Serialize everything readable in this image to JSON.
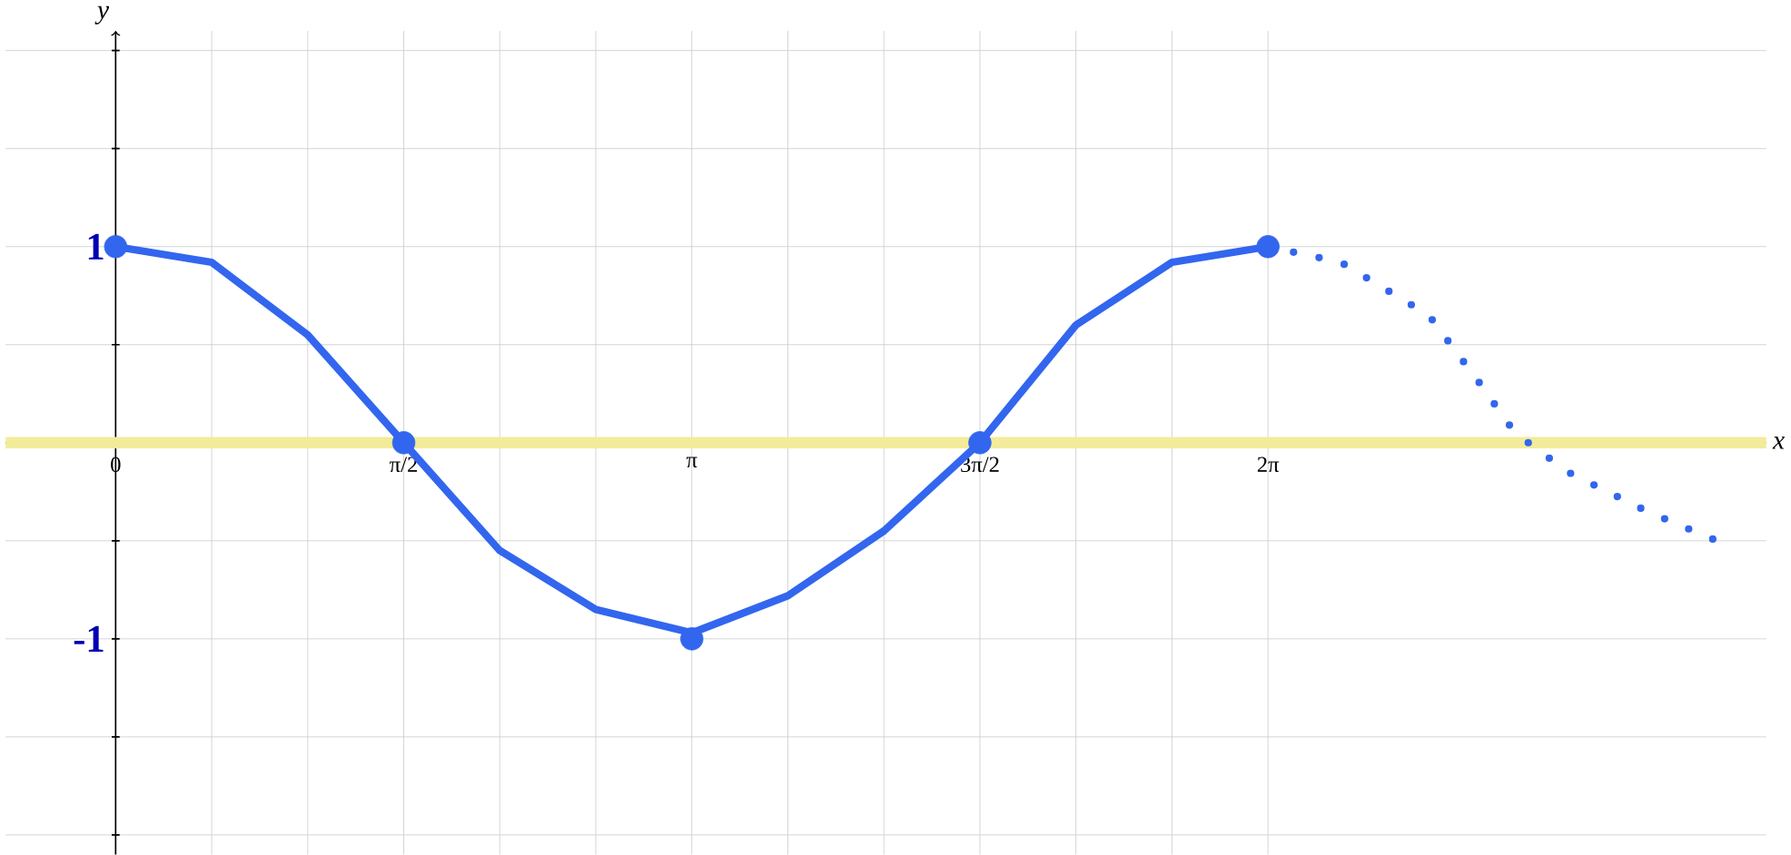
{
  "chart_data": {
    "type": "line",
    "xlabel": "x",
    "ylabel": "y",
    "xlim": [
      -0.6,
      9.0
    ],
    "ylim": [
      -2.1,
      2.1
    ],
    "xticks": [
      {
        "value": 0,
        "label": "0"
      },
      {
        "value": 0.5236,
        "label": null
      },
      {
        "value": 1.0472,
        "label": null
      },
      {
        "value": 1.5708,
        "label": "π/2"
      },
      {
        "value": 2.0944,
        "label": null
      },
      {
        "value": 2.618,
        "label": null
      },
      {
        "value": 3.1416,
        "label": "π"
      },
      {
        "value": 3.6652,
        "label": null
      },
      {
        "value": 4.1888,
        "label": null
      },
      {
        "value": 4.7124,
        "label": "3π/2"
      },
      {
        "value": 5.236,
        "label": null
      },
      {
        "value": 5.7596,
        "label": null
      },
      {
        "value": 6.2832,
        "label": "2π"
      }
    ],
    "yticks": [
      {
        "value": -2,
        "label": null
      },
      {
        "value": -1.5,
        "label": null
      },
      {
        "value": -1,
        "label": "-1"
      },
      {
        "value": -0.5,
        "label": null
      },
      {
        "value": 0.5,
        "label": null
      },
      {
        "value": 1,
        "label": "1"
      },
      {
        "value": 1.5,
        "label": null
      },
      {
        "value": 2,
        "label": null
      }
    ],
    "grid": true,
    "ref_lines": [
      {
        "axis": "y",
        "value": 0,
        "color": "#f2ec9a"
      }
    ],
    "series": [
      {
        "color": "#3366ee",
        "line_style": "solid",
        "marker": "none",
        "x": [
          0,
          0.5236,
          1.0472,
          1.5708,
          2.0944,
          2.618,
          3.1416,
          3.6652,
          4.1888,
          4.7124,
          5.236,
          5.7596,
          6.2832
        ],
        "values": [
          1,
          0.92,
          0.55,
          0,
          -0.55,
          -0.85,
          -0.97,
          -0.78,
          -0.45,
          0,
          0.6,
          0.92,
          1
        ]
      },
      {
        "type": "scatter",
        "color": "#3366ee",
        "marker": "circle",
        "x": [
          0,
          1.5708,
          3.1416,
          4.7124,
          6.2832
        ],
        "values": [
          1,
          0,
          -1,
          0,
          1
        ]
      },
      {
        "type": "line",
        "color": "#3366ee",
        "line_style": "dotted",
        "marker": "none",
        "x": [
          6.2832,
          6.68,
          7.16,
          7.44,
          7.63,
          7.92,
          8.35,
          8.73
        ],
        "values": [
          1,
          0.92,
          0.65,
          0.3,
          0.05,
          -0.15,
          -0.35,
          -0.5
        ]
      }
    ]
  }
}
